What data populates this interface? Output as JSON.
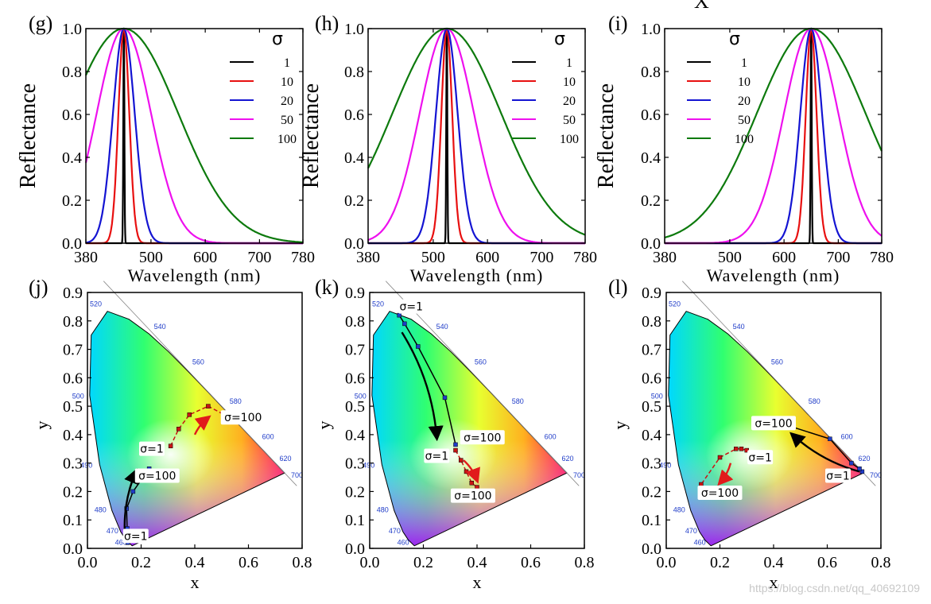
{
  "top_letter": "X",
  "watermark": "https://blog.csdn.net/qq_40692109",
  "colors": {
    "axis": "#000000",
    "s1": "#000000",
    "s10": "#e81010",
    "s20": "#1414d2",
    "s50": "#ee10ee",
    "s100": "#0d7a0d",
    "arrow_black": "#000000",
    "arrow_red": "#e11b1b"
  },
  "chart_data": [
    {
      "type": "line",
      "panel": "(g)",
      "xlabel": "Wavelength (nm)",
      "ylabel": "Reflectance",
      "xlim": [
        380,
        780
      ],
      "ylim": [
        0,
        1
      ],
      "xticks": [
        "380",
        "500",
        "600",
        "700",
        "780"
      ],
      "xtick_values": [
        380,
        500,
        600,
        700,
        780
      ],
      "yticks": [
        "0.0",
        "0.2",
        "0.4",
        "0.6",
        "0.8",
        "1.0"
      ],
      "ytick_values": [
        0,
        0.2,
        0.4,
        0.6,
        0.8,
        1.0
      ],
      "legend_title": "σ",
      "legend_position": "top-right",
      "peak": 450,
      "series": [
        {
          "name": "1",
          "sigma": 1
        },
        {
          "name": "10",
          "sigma": 10
        },
        {
          "name": "20",
          "sigma": 20
        },
        {
          "name": "50",
          "sigma": 50
        },
        {
          "name": "100",
          "sigma": 100
        }
      ]
    },
    {
      "type": "line",
      "panel": "(h)",
      "xlabel": "Wavelength (nm)",
      "ylabel": "Reflectance",
      "xlim": [
        380,
        780
      ],
      "ylim": [
        0,
        1
      ],
      "xticks": [
        "380",
        "500",
        "600",
        "700",
        "780"
      ],
      "xtick_values": [
        380,
        500,
        600,
        700,
        780
      ],
      "yticks": [
        "0.0",
        "0.2",
        "0.4",
        "0.6",
        "0.8",
        "1.0"
      ],
      "ytick_values": [
        0,
        0.2,
        0.4,
        0.6,
        0.8,
        1.0
      ],
      "legend_title": "σ",
      "legend_position": "top-right",
      "peak": 525,
      "series": [
        {
          "name": "1",
          "sigma": 1
        },
        {
          "name": "10",
          "sigma": 10
        },
        {
          "name": "20",
          "sigma": 20
        },
        {
          "name": "50",
          "sigma": 50
        },
        {
          "name": "100",
          "sigma": 100
        }
      ]
    },
    {
      "type": "line",
      "panel": "(i)",
      "xlabel": "Wavelength (nm)",
      "ylabel": "Reflectance",
      "xlim": [
        380,
        780
      ],
      "ylim": [
        0,
        1
      ],
      "xticks": [
        "380",
        "500",
        "600",
        "700",
        "780"
      ],
      "xtick_values": [
        380,
        500,
        600,
        700,
        780
      ],
      "yticks": [
        "0.0",
        "0.2",
        "0.4",
        "0.6",
        "0.8",
        "1.0"
      ],
      "ytick_values": [
        0,
        0.2,
        0.4,
        0.6,
        0.8,
        1.0
      ],
      "legend_title": "σ",
      "legend_position": "top-left",
      "peak": 650,
      "series": [
        {
          "name": "1",
          "sigma": 1
        },
        {
          "name": "10",
          "sigma": 10
        },
        {
          "name": "20",
          "sigma": 20
        },
        {
          "name": "50",
          "sigma": 50
        },
        {
          "name": "100",
          "sigma": 100
        }
      ]
    },
    {
      "type": "scatter",
      "panel": "(j)",
      "xlabel": "x",
      "ylabel": "y",
      "xlim": [
        0,
        0.8
      ],
      "ylim": [
        0,
        0.9
      ],
      "xticks": [
        "0.0",
        "0.2",
        "0.4",
        "0.6",
        "0.8"
      ],
      "xtick_values": [
        0,
        0.2,
        0.4,
        0.6,
        0.8
      ],
      "yticks": [
        "0.0",
        "0.1",
        "0.2",
        "0.3",
        "0.4",
        "0.5",
        "0.6",
        "0.7",
        "0.8",
        "0.9"
      ],
      "ytick_values": [
        0,
        0.1,
        0.2,
        0.3,
        0.4,
        0.5,
        0.6,
        0.7,
        0.8,
        0.9
      ],
      "locus_labels": [
        "460",
        "470",
        "480",
        "490",
        "500",
        "520",
        "540",
        "560",
        "580",
        "600",
        "620",
        "700"
      ],
      "series": [
        {
          "name": "black",
          "color": "black",
          "points": [
            [
              0.15,
              0.02
            ],
            [
              0.148,
              0.07
            ],
            [
              0.146,
              0.14
            ],
            [
              0.17,
              0.2
            ],
            [
              0.23,
              0.28
            ]
          ]
        },
        {
          "name": "red",
          "color": "red",
          "points": [
            [
              0.31,
              0.36
            ],
            [
              0.34,
              0.42
            ],
            [
              0.38,
              0.47
            ],
            [
              0.45,
              0.5
            ],
            [
              0.51,
              0.47
            ]
          ]
        }
      ],
      "annotations": [
        {
          "text": "σ=1",
          "x": 0.18,
          "y": 0.038
        },
        {
          "text": "σ=100",
          "x": 0.26,
          "y": 0.25
        },
        {
          "text": "σ=1",
          "x": 0.24,
          "y": 0.345
        },
        {
          "text": "σ=100",
          "x": 0.58,
          "y": 0.455
        }
      ],
      "arrows": [
        {
          "color": "black",
          "from": [
            0.14,
            0.04
          ],
          "to": [
            0.18,
            0.27
          ]
        },
        {
          "color": "red",
          "from": [
            0.4,
            0.4
          ],
          "to": [
            0.45,
            0.46
          ]
        }
      ]
    },
    {
      "type": "scatter",
      "panel": "(k)",
      "xlabel": "x",
      "ylabel": "y",
      "xlim": [
        0,
        0.8
      ],
      "ylim": [
        0,
        0.9
      ],
      "xticks": [
        "0.0",
        "0.2",
        "0.4",
        "0.6",
        "0.8"
      ],
      "xtick_values": [
        0,
        0.2,
        0.4,
        0.6,
        0.8
      ],
      "yticks": [
        "0.0",
        "0.1",
        "0.2",
        "0.3",
        "0.4",
        "0.5",
        "0.6",
        "0.7",
        "0.8",
        "0.9"
      ],
      "ytick_values": [
        0,
        0.1,
        0.2,
        0.3,
        0.4,
        0.5,
        0.6,
        0.7,
        0.8,
        0.9
      ],
      "locus_labels": [
        "460",
        "470",
        "480",
        "490",
        "500",
        "520",
        "540",
        "560",
        "580",
        "600",
        "620",
        "700"
      ],
      "series": [
        {
          "name": "black",
          "color": "black",
          "points": [
            [
              0.11,
              0.82
            ],
            [
              0.13,
              0.79
            ],
            [
              0.18,
              0.71
            ],
            [
              0.28,
              0.53
            ],
            [
              0.32,
              0.365
            ]
          ]
        },
        {
          "name": "red",
          "color": "red",
          "points": [
            [
              0.32,
              0.345
            ],
            [
              0.34,
              0.31
            ],
            [
              0.36,
              0.27
            ],
            [
              0.38,
              0.23
            ],
            [
              0.4,
              0.215
            ]
          ]
        }
      ],
      "annotations": [
        {
          "text": "σ=1",
          "x": 0.155,
          "y": 0.845
        },
        {
          "text": "σ=100",
          "x": 0.42,
          "y": 0.385
        },
        {
          "text": "σ=1",
          "x": 0.25,
          "y": 0.32
        },
        {
          "text": "σ=100",
          "x": 0.385,
          "y": 0.18
        }
      ],
      "arrows": [
        {
          "color": "black",
          "from": [
            0.12,
            0.76
          ],
          "to": [
            0.25,
            0.39
          ]
        },
        {
          "color": "red",
          "from": [
            0.35,
            0.31
          ],
          "to": [
            0.4,
            0.24
          ]
        }
      ]
    },
    {
      "type": "scatter",
      "panel": "(l)",
      "xlabel": "x",
      "ylabel": "y",
      "xlim": [
        0,
        0.8
      ],
      "ylim": [
        0,
        0.9
      ],
      "xticks": [
        "0.0",
        "0.2",
        "0.4",
        "0.6",
        "0.8"
      ],
      "xtick_values": [
        0,
        0.2,
        0.4,
        0.6,
        0.8
      ],
      "yticks": [
        "0.0",
        "0.1",
        "0.2",
        "0.3",
        "0.4",
        "0.5",
        "0.6",
        "0.7",
        "0.8",
        "0.9"
      ],
      "ytick_values": [
        0,
        0.1,
        0.2,
        0.3,
        0.4,
        0.5,
        0.6,
        0.7,
        0.8,
        0.9
      ],
      "locus_labels": [
        "460",
        "470",
        "480",
        "490",
        "500",
        "520",
        "540",
        "560",
        "580",
        "600",
        "620",
        "700"
      ],
      "series": [
        {
          "name": "black",
          "color": "black",
          "points": [
            [
              0.73,
              0.27
            ],
            [
              0.72,
              0.28
            ],
            [
              0.69,
              0.3
            ],
            [
              0.61,
              0.385
            ],
            [
              0.46,
              0.43
            ]
          ]
        },
        {
          "name": "red",
          "color": "red",
          "points": [
            [
              0.3,
              0.345
            ],
            [
              0.28,
              0.35
            ],
            [
              0.26,
              0.35
            ],
            [
              0.2,
              0.32
            ],
            [
              0.13,
              0.225
            ]
          ]
        }
      ],
      "annotations": [
        {
          "text": "σ=100",
          "x": 0.4,
          "y": 0.435
        },
        {
          "text": "σ=1",
          "x": 0.64,
          "y": 0.25
        },
        {
          "text": "σ=1",
          "x": 0.35,
          "y": 0.315
        },
        {
          "text": "σ=100",
          "x": 0.2,
          "y": 0.19
        }
      ],
      "arrows": [
        {
          "color": "black",
          "from": [
            0.72,
            0.27
          ],
          "to": [
            0.47,
            0.4
          ]
        },
        {
          "color": "red",
          "from": [
            0.24,
            0.3
          ],
          "to": [
            0.2,
            0.23
          ]
        }
      ]
    }
  ]
}
